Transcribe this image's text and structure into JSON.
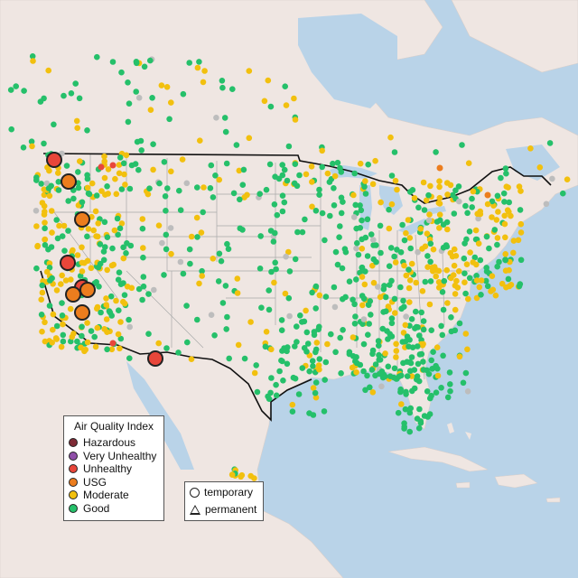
{
  "legend": {
    "title": "Air Quality Index",
    "categories": [
      {
        "label": "Hazardous",
        "color": "#7e2a35"
      },
      {
        "label": "Very Unhealthy",
        "color": "#8f4fa8"
      },
      {
        "label": "Unhealthy",
        "color": "#e8463a"
      },
      {
        "label": "USG",
        "color": "#ec7d1e"
      },
      {
        "label": "Moderate",
        "color": "#f2c00e"
      },
      {
        "label": "Good",
        "color": "#25c06a"
      }
    ]
  },
  "monitor_types": {
    "temporary": "temporary",
    "permanent": "permanent"
  },
  "colors": {
    "land": "#efe6e2",
    "water": "#b9d3e8",
    "state_border": "#a9a9a9",
    "country_border": "#111111",
    "no_data": "#bdbdbd"
  }
}
